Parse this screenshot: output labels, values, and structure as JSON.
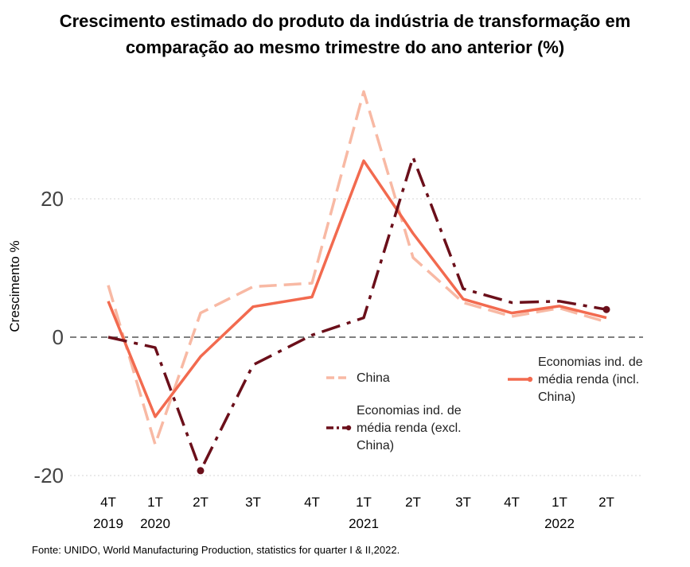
{
  "chart_data": {
    "type": "line",
    "title_line1": "Crescimento estimado do produto da indústria de transformação em",
    "title_line2": "comparação ao mesmo trimestre do ano anterior (%)",
    "ylabel": "Crescimento %",
    "xlabel": "",
    "ylim": [
      -20,
      36
    ],
    "yticks": [
      -20,
      0,
      20
    ],
    "grid": "horizontal dotted",
    "zero_line": "dashed",
    "categories": [
      "4T 2019",
      "1T 2020",
      "2T 2020",
      "3T 2020",
      "4T 2020",
      "1T 2021",
      "2T 2021",
      "3T 2021",
      "4T 2021",
      "1T 2022",
      "2T 2022"
    ],
    "x_tick_quarters": [
      "4T",
      "1T",
      "2T",
      "3T",
      "4T",
      "1T",
      "2T",
      "3T",
      "4T",
      "1T",
      "2T"
    ],
    "x_tick_years": [
      "2019",
      "2020",
      "",
      "",
      "",
      "2021",
      "",
      "",
      "",
      "2022",
      ""
    ],
    "series": [
      {
        "name": "China",
        "legend_lines": [
          "China"
        ],
        "color": "#f8b9a4",
        "style": "longdash",
        "values": [
          7.5,
          -15.5,
          3.5,
          7.3,
          7.8,
          35.5,
          11.5,
          5.0,
          3.0,
          4.2,
          2.2
        ]
      },
      {
        "name": "Economias ind. de média renda (excl. China)",
        "legend_lines": [
          "Economias ind. de",
          "média renda (excl.",
          "China)"
        ],
        "color": "#6b0f1a",
        "style": "dashdot",
        "values": [
          0.0,
          -1.5,
          -19.3,
          -4.0,
          0.3,
          2.8,
          26.0,
          7.0,
          5.0,
          5.2,
          4.0
        ]
      },
      {
        "name": "Economias ind. de média renda (incl. China)",
        "legend_lines": [
          "Economias ind. de",
          "média renda (incl.",
          "China)"
        ],
        "color": "#f26a4f",
        "style": "solid",
        "values": [
          5.2,
          -11.5,
          -2.8,
          4.4,
          5.8,
          25.5,
          15.0,
          5.5,
          3.5,
          4.5,
          2.8
        ]
      }
    ],
    "legend_placement": "inside, lower-right"
  },
  "source_text": "Fonte: UNIDO, World  Manufacturing Production,  statistics for quarter I & II,2022."
}
